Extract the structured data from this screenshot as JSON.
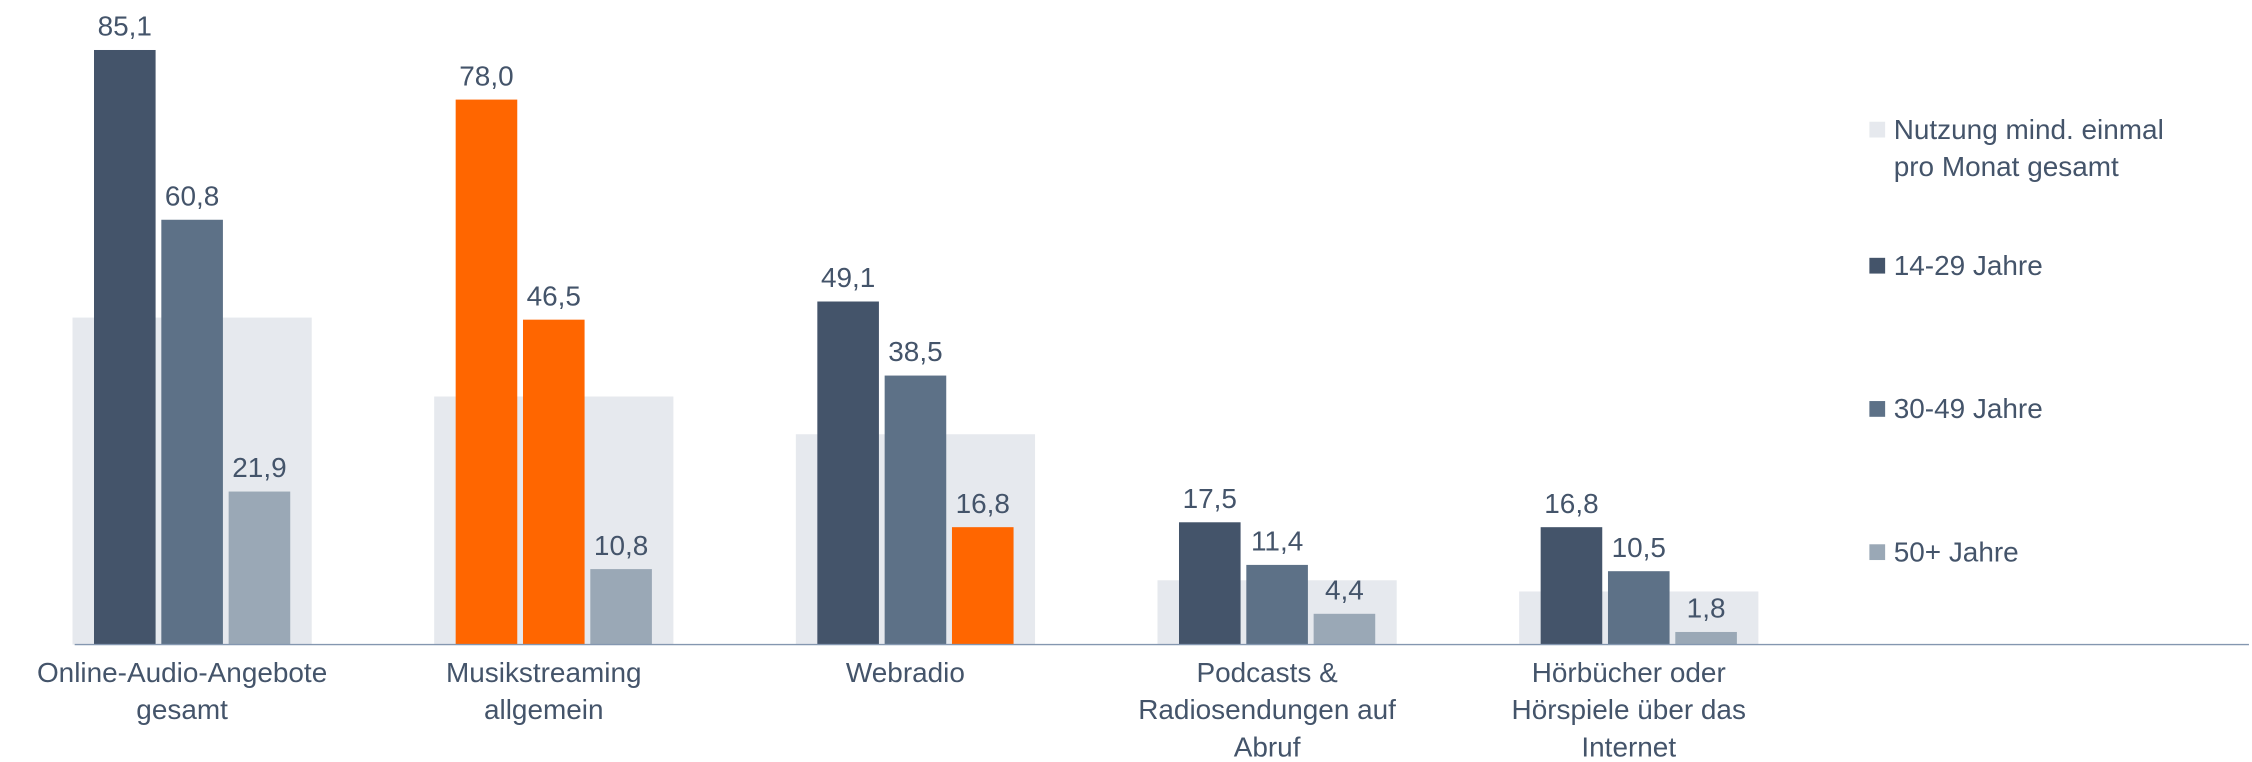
{
  "chart_data": {
    "type": "bar",
    "categories": [
      "Online-Audio-Angebote gesamt",
      "Musikstreaming allgemein",
      "Webradio",
      "Podcasts & Radiosendungen auf Abruf",
      "Hörbücher oder Hörspiele über das Internet"
    ],
    "ylim": [
      0,
      90
    ],
    "series": [
      {
        "name": "Nutzung mind. einmal pro Monat gesamt",
        "color": "#e6e9ee",
        "values": [
          46.8,
          35.5,
          30.1,
          9.2,
          7.6
        ]
      },
      {
        "name": "14-29 Jahre",
        "color": "#44546a",
        "colors": [
          "#44546a",
          "#ff6600",
          "#44546a",
          "#44546a",
          "#44546a"
        ],
        "values": [
          85.1,
          78.0,
          49.1,
          17.5,
          16.8
        ],
        "value_labels": [
          "85,1",
          "78,0",
          "49,1",
          "17,5",
          "16,8"
        ]
      },
      {
        "name": "30-49 Jahre",
        "color": "#5d7187",
        "colors": [
          "#5d7187",
          "#ff6600",
          "#5d7187",
          "#5d7187",
          "#5d7187"
        ],
        "values": [
          60.8,
          46.5,
          38.5,
          11.4,
          10.5
        ],
        "value_labels": [
          "60,8",
          "46,5",
          "38,5",
          "11,4",
          "10,5"
        ]
      },
      {
        "name": "50+ Jahre",
        "color": "#9aa8b6",
        "colors": [
          "#9aa8b6",
          "#9aa8b6",
          "#ff6600",
          "#9aa8b6",
          "#9aa8b6"
        ],
        "values": [
          21.9,
          10.8,
          16.8,
          4.4,
          1.8
        ],
        "value_labels": [
          "21,9",
          "10,8",
          "16,8",
          "4,4",
          "1,8"
        ]
      }
    ]
  }
}
